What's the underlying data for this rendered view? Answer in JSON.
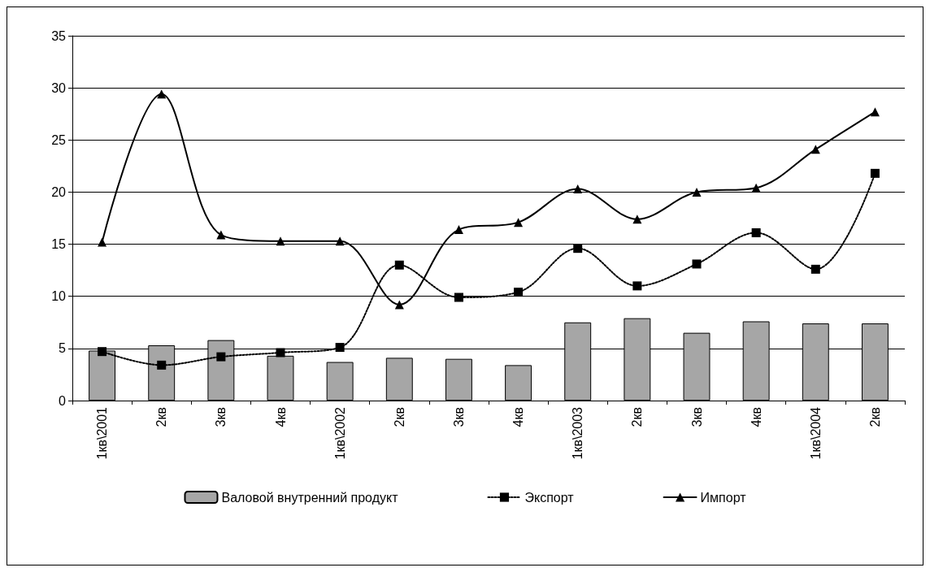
{
  "chart_data": {
    "type": "bar",
    "categories": [
      "1кв\\2001",
      "2кв",
      "3кв",
      "4кв",
      "1кв\\2002",
      "2кв",
      "3кв",
      "4кв",
      "1кв\\2003",
      "2кв",
      "3кв",
      "4кв",
      "1кв\\2004",
      "2кв"
    ],
    "series": [
      {
        "name": "Валовой внутренний продукт",
        "type": "bar",
        "color": "#a6a6a6",
        "values": [
          4.8,
          5.3,
          5.8,
          4.3,
          3.7,
          4.1,
          4.0,
          3.4,
          7.5,
          7.9,
          6.5,
          7.6,
          7.4,
          7.4
        ]
      },
      {
        "name": "Экспорт",
        "type": "line",
        "color": "#000000",
        "marker": "square",
        "line_style": "dotted",
        "values": [
          4.7,
          3.4,
          4.2,
          4.6,
          5.1,
          13.0,
          9.9,
          10.4,
          14.6,
          11.0,
          13.1,
          16.1,
          12.6,
          21.8
        ]
      },
      {
        "name": "Импорт",
        "type": "line",
        "color": "#000000",
        "marker": "triangle",
        "line_style": "solid",
        "values": [
          15.2,
          29.4,
          15.9,
          15.3,
          15.3,
          9.2,
          16.4,
          17.1,
          20.3,
          17.4,
          20.0,
          20.4,
          24.1,
          27.7
        ]
      }
    ],
    "ylim": [
      0,
      35
    ],
    "yticks": [
      0,
      5,
      10,
      15,
      20,
      25,
      30,
      35
    ],
    "grid": "y",
    "legend": "bottom"
  }
}
